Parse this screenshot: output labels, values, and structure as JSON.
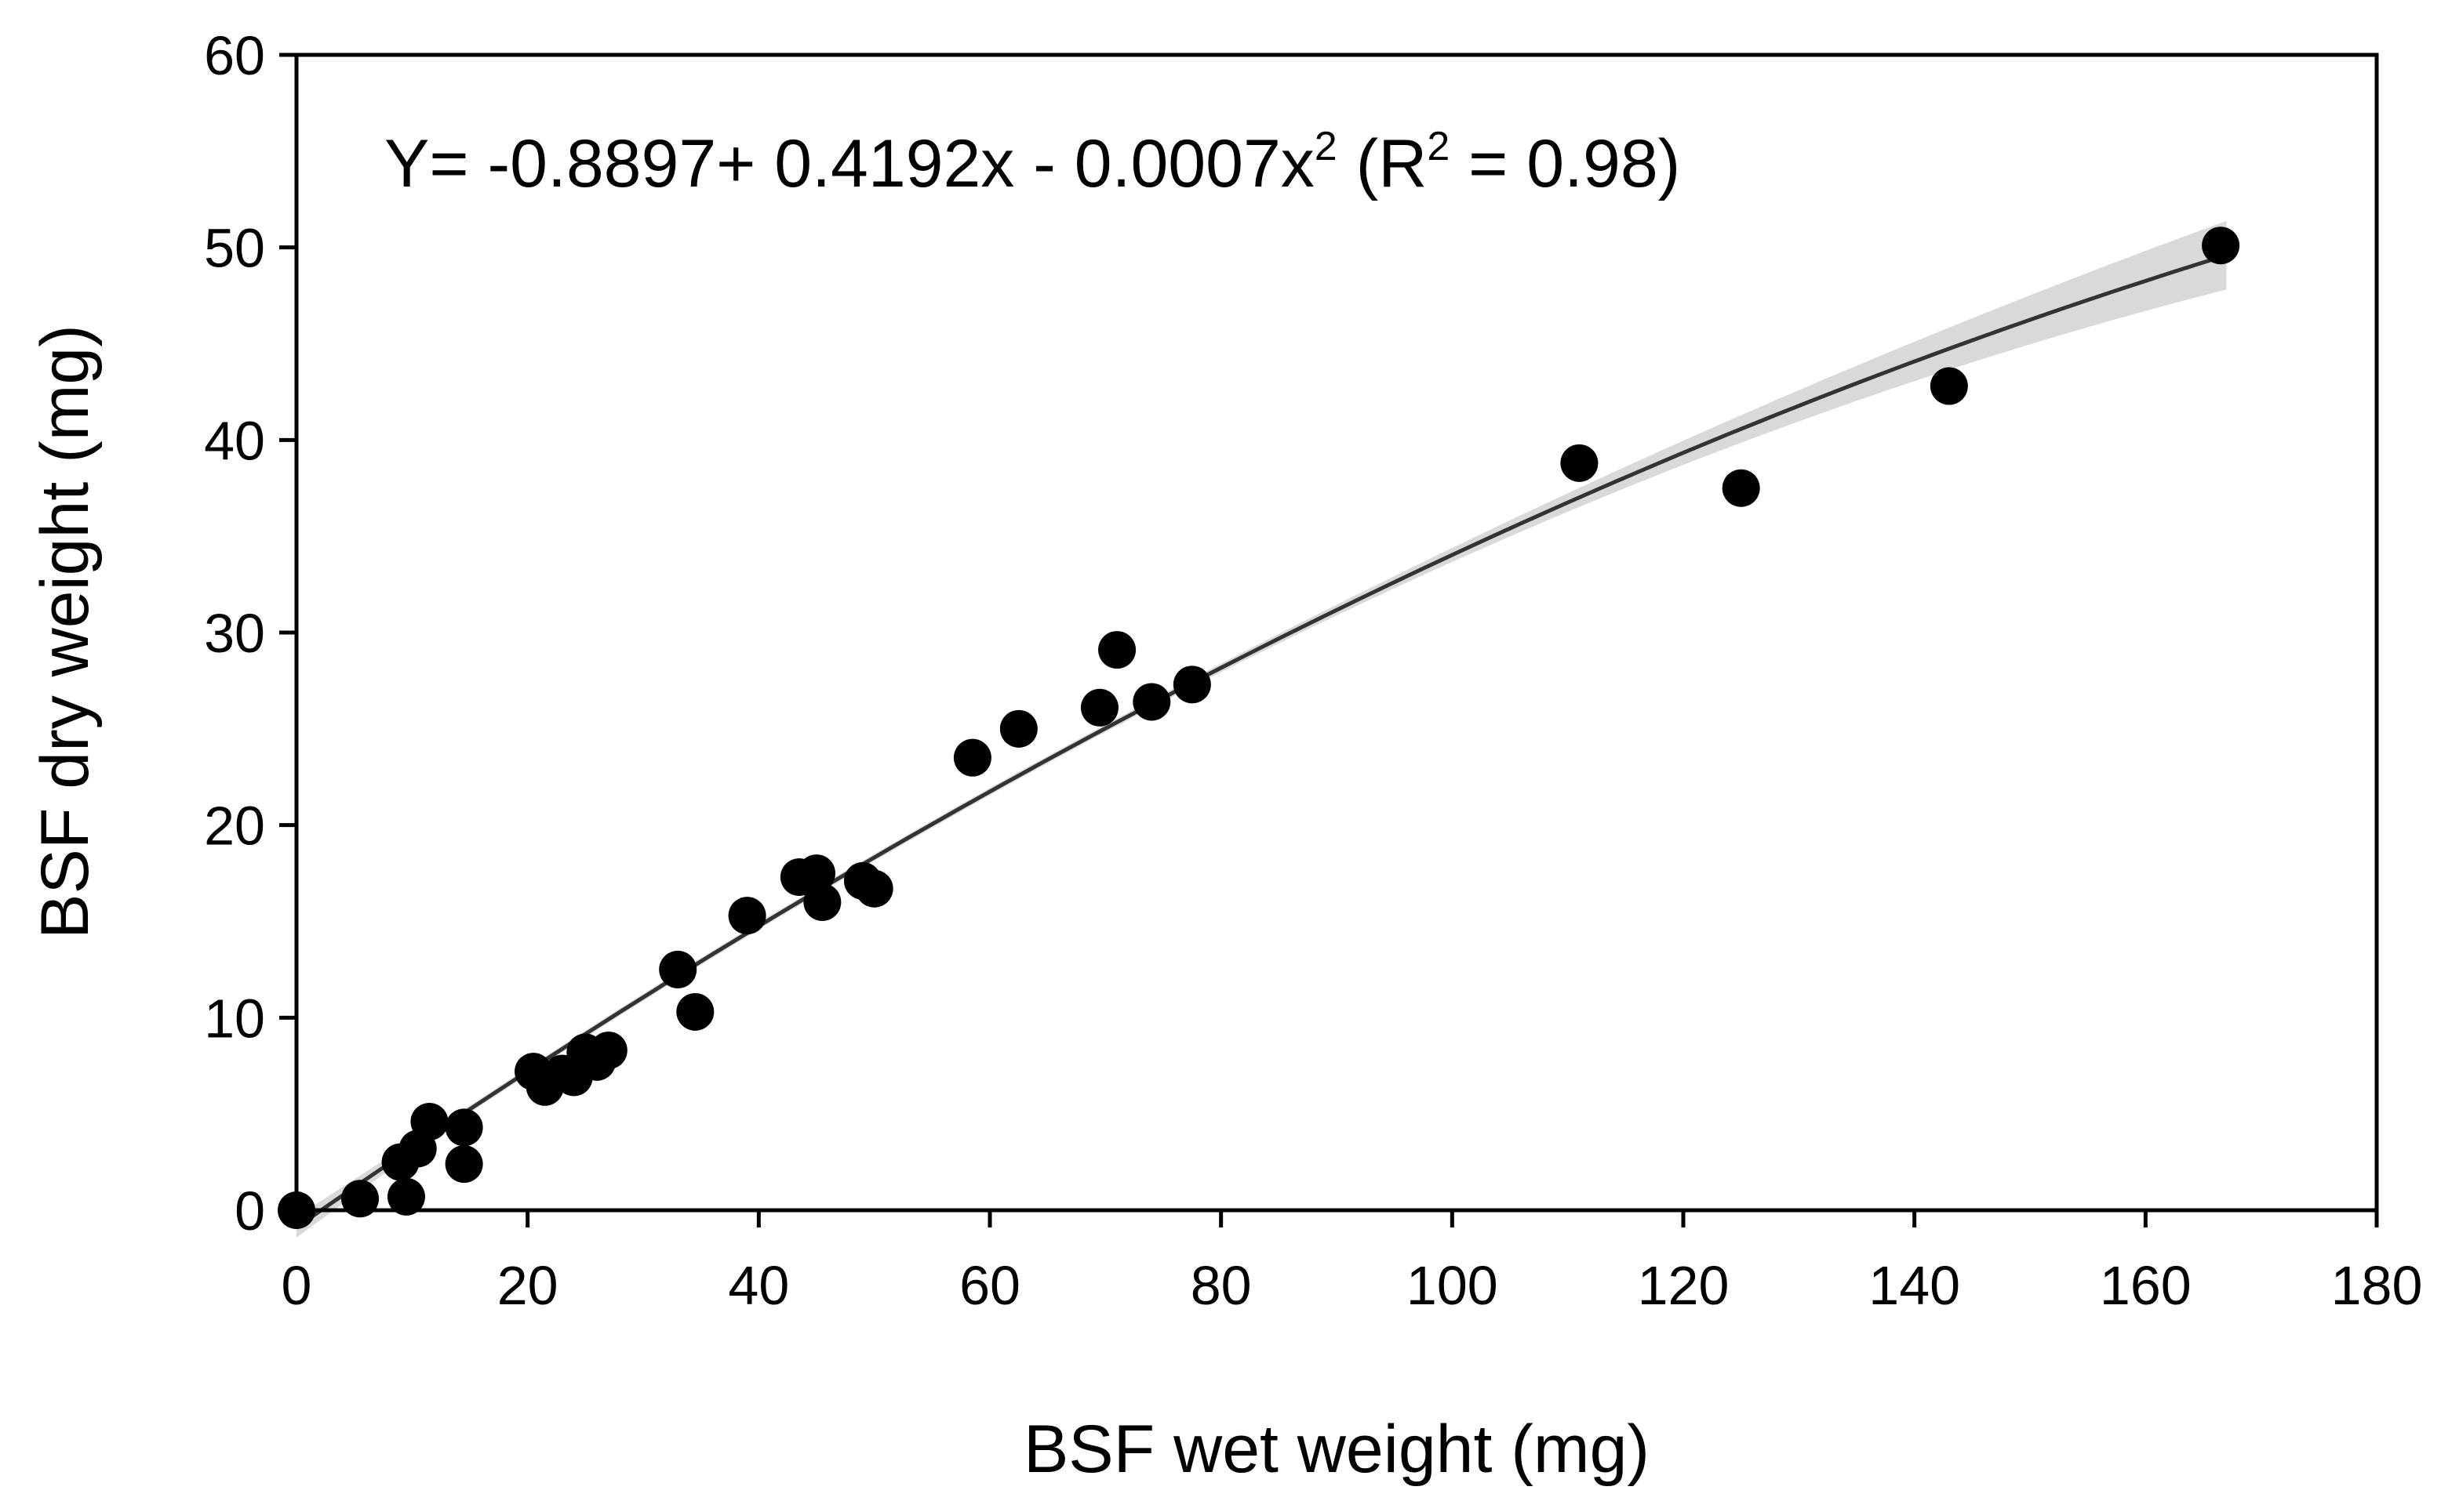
{
  "chart_data": {
    "type": "scatter",
    "title": "",
    "xlabel": "BSF wet weight (mg)",
    "ylabel": "BSF dry weight (mg)",
    "xlim": [
      0,
      180
    ],
    "ylim": [
      0,
      60
    ],
    "xticks": [
      0,
      20,
      40,
      60,
      80,
      100,
      120,
      140,
      160,
      180
    ],
    "yticks": [
      0,
      10,
      20,
      30,
      40,
      50,
      60
    ],
    "grid": false,
    "legend": "none",
    "annotation": {
      "parts": [
        "Y= -0.8897+ 0.4192x - 0.0007x",
        "2",
        " (R",
        "2",
        " = 0.98)"
      ],
      "placement": "top-left"
    },
    "fit": {
      "model": "quadratic",
      "intercept": -0.8897,
      "linear": 0.4192,
      "quadratic": -0.0007,
      "r_squared": 0.98,
      "x_range": [
        0,
        167
      ],
      "confidence_band": true,
      "line_color": "#333333",
      "band_color": "#d9d9d9"
    },
    "series": [
      {
        "name": "observations",
        "marker_color": "#000000",
        "points": [
          [
            0,
            0
          ],
          [
            5.5,
            0.6
          ],
          [
            9,
            2.5
          ],
          [
            9.5,
            0.7
          ],
          [
            10.5,
            3.2
          ],
          [
            11.5,
            4.6
          ],
          [
            14.5,
            4.3
          ],
          [
            14.5,
            2.4
          ],
          [
            20.5,
            7.2
          ],
          [
            21.5,
            6.4
          ],
          [
            23,
            7.1
          ],
          [
            24,
            6.9
          ],
          [
            25,
            8.2
          ],
          [
            26,
            7.7
          ],
          [
            27,
            8.3
          ],
          [
            33,
            12.5
          ],
          [
            34.5,
            10.3
          ],
          [
            39,
            15.3
          ],
          [
            43.5,
            17.3
          ],
          [
            45,
            17.5
          ],
          [
            45.5,
            16
          ],
          [
            49,
            17.1
          ],
          [
            50,
            16.7
          ],
          [
            58.5,
            23.5
          ],
          [
            62.5,
            25
          ],
          [
            69.5,
            26.1
          ],
          [
            71,
            29.1
          ],
          [
            74,
            26.4
          ],
          [
            77.5,
            27.3
          ],
          [
            111,
            38.8
          ],
          [
            125,
            37.5
          ],
          [
            143,
            42.8
          ],
          [
            166.5,
            50.1
          ]
        ]
      }
    ]
  }
}
